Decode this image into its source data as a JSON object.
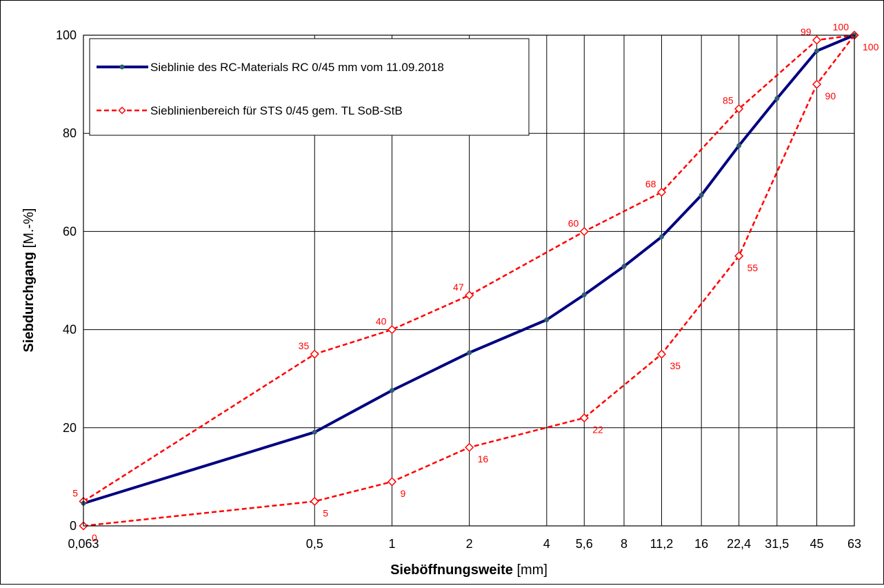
{
  "chart_data": {
    "type": "line",
    "x_label": "Sieböffnungsweite",
    "x_label_unit": "[mm]",
    "y_label": "Siebdurchgang",
    "y_label_unit": "[M.-%]",
    "xscale": "log",
    "xlim": [
      0.063,
      63
    ],
    "xticks": [
      {
        "value": 0.063,
        "label": "0,063"
      },
      {
        "value": 0.5,
        "label": "0,5"
      },
      1,
      2,
      4,
      {
        "value": 5.6,
        "label": "5,6"
      },
      8,
      {
        "value": 11.2,
        "label": "11,2"
      },
      16,
      {
        "value": 22.4,
        "label": "22,4"
      },
      {
        "value": 31.5,
        "label": "31,5"
      },
      45,
      63
    ],
    "ylim": [
      0,
      100
    ],
    "yticks": [
      0,
      20,
      40,
      60,
      80,
      100
    ],
    "grid": true,
    "legend": "upper left",
    "series": [
      {
        "name": "Sieblinie des RC-Materials RC 0/45 mm vom  11.09.2018",
        "color": "#000080",
        "marker": "circle",
        "x": [
          0.063,
          0.5,
          1,
          2,
          4,
          5.6,
          8,
          11.2,
          16,
          22.4,
          31.5,
          45,
          63
        ],
        "values": [
          4.6,
          19.1,
          27.6,
          35.3,
          42,
          47.1,
          52.9,
          58.9,
          67.4,
          77.5,
          87.1,
          96.8,
          100
        ]
      },
      {
        "name": "Sieblinienbereich für STS 0/45 gem. TL SoB-StB",
        "color": "#ff0000",
        "marker": "diamond",
        "data_labels": true,
        "x": [
          0.063,
          0.5,
          1,
          2,
          5.6,
          11.2,
          22.4,
          45,
          63
        ],
        "values": [
          5,
          35,
          40,
          47,
          60,
          68,
          85,
          99,
          100
        ]
      },
      {
        "color": "#ff0000",
        "marker": "diamond",
        "data_labels": true,
        "x": [
          0.063,
          0.5,
          1,
          2,
          5.6,
          11.2,
          22.4,
          45,
          63
        ],
        "values": [
          0,
          5,
          9,
          16,
          22,
          35,
          55,
          90,
          100
        ]
      }
    ]
  }
}
